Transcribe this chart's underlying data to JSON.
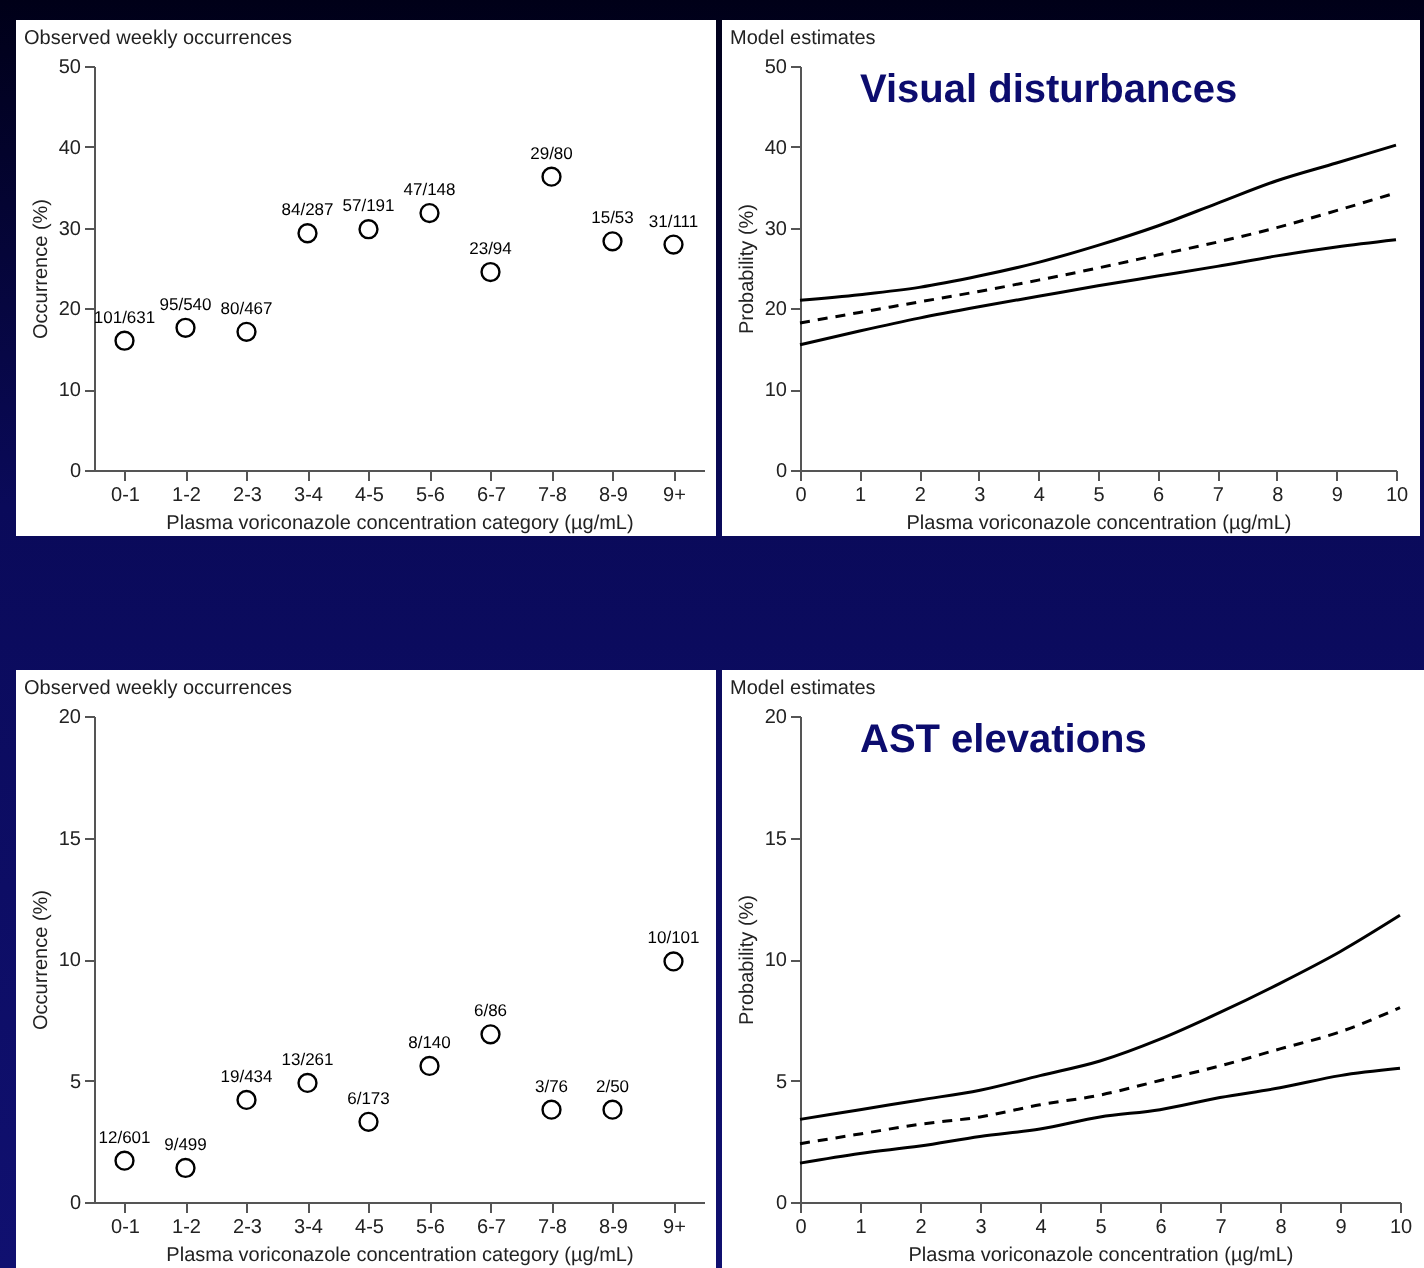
{
  "chart_data": [
    {
      "type": "scatter",
      "title": "Observed weekly occurrences",
      "xlabel": "Plasma voriconazole concentration category (µg/mL)",
      "ylabel": "Occurrence (%)",
      "categories": [
        "0-1",
        "1-2",
        "2-3",
        "3-4",
        "4-5",
        "5-6",
        "6-7",
        "7-8",
        "8-9",
        "9+"
      ],
      "series": [
        {
          "color": "#000000",
          "values": [
            16.0,
            17.6,
            17.1,
            29.3,
            29.8,
            31.8,
            24.5,
            36.3,
            28.3,
            27.9
          ],
          "value_labels": [
            "101/631",
            "95/540",
            "80/467",
            "84/287",
            "57/191",
            "47/148",
            "23/94",
            "29/80",
            "15/53",
            "31/111"
          ]
        }
      ],
      "ylim": [
        0,
        50
      ],
      "yticks": [
        0,
        10,
        20,
        30,
        40,
        50
      ],
      "marker": "circle",
      "grid": false
    },
    {
      "type": "line",
      "title": "Model estimates",
      "annotations": [
        "Visual disturbances"
      ],
      "xlabel": "Plasma voriconazole concentration (µg/mL)",
      "ylabel": "Probability (%)",
      "x": [
        0,
        1,
        2,
        3,
        4,
        5,
        6,
        7,
        8,
        9,
        10
      ],
      "series": [
        {
          "color": "#000000",
          "line_style": "solid",
          "values": [
            21.0,
            21.7,
            22.6,
            24.0,
            25.7,
            27.8,
            30.2,
            33.0,
            35.8,
            38.0,
            40.2
          ]
        },
        {
          "color": "#000000",
          "line_style": "dashed",
          "values": [
            18.2,
            19.5,
            20.8,
            22.1,
            23.5,
            25.0,
            26.6,
            28.2,
            30.0,
            32.1,
            34.3
          ]
        },
        {
          "color": "#000000",
          "line_style": "solid",
          "values": [
            15.5,
            17.2,
            18.8,
            20.2,
            21.5,
            22.8,
            24.0,
            25.2,
            26.5,
            27.6,
            28.5
          ]
        }
      ],
      "xlim": [
        0,
        10
      ],
      "xticks": [
        0,
        1,
        2,
        3,
        4,
        5,
        6,
        7,
        8,
        9,
        10
      ],
      "ylim": [
        0,
        50
      ],
      "yticks": [
        0,
        10,
        20,
        30,
        40,
        50
      ],
      "grid": false
    },
    {
      "type": "scatter",
      "title": "Observed weekly occurrences",
      "xlabel": "Plasma voriconazole concentration category (µg/mL)",
      "ylabel": "Occurrence (%)",
      "categories": [
        "0-1",
        "1-2",
        "2-3",
        "3-4",
        "4-5",
        "5-6",
        "6-7",
        "7-8",
        "8-9",
        "9+"
      ],
      "series": [
        {
          "color": "#000000",
          "values": [
            1.7,
            1.4,
            4.2,
            4.9,
            3.3,
            5.6,
            6.9,
            3.8,
            3.8,
            9.9
          ],
          "value_labels": [
            "12/601",
            "9/499",
            "19/434",
            "13/261",
            "6/173",
            "8/140",
            "6/86",
            "3/76",
            "2/50",
            "10/101"
          ]
        }
      ],
      "ylim": [
        0,
        20
      ],
      "yticks": [
        0,
        5,
        10,
        15,
        20
      ],
      "marker": "circle",
      "grid": false
    },
    {
      "type": "line",
      "title": "Model estimates",
      "annotations": [
        "AST elevations"
      ],
      "xlabel": "Plasma voriconazole concentration (µg/mL)",
      "ylabel": "Probability (%)",
      "x": [
        0,
        1,
        2,
        3,
        4,
        5,
        6,
        7,
        8,
        9,
        10
      ],
      "series": [
        {
          "color": "#000000",
          "line_style": "solid",
          "values": [
            3.4,
            3.8,
            4.2,
            4.6,
            5.2,
            5.8,
            6.7,
            7.8,
            9.0,
            10.3,
            11.8
          ]
        },
        {
          "color": "#000000",
          "line_style": "dashed",
          "values": [
            2.4,
            2.8,
            3.2,
            3.5,
            4.0,
            4.4,
            5.0,
            5.6,
            6.3,
            7.0,
            8.0
          ]
        },
        {
          "color": "#000000",
          "line_style": "solid",
          "values": [
            1.6,
            2.0,
            2.3,
            2.7,
            3.0,
            3.5,
            3.8,
            4.3,
            4.7,
            5.2,
            5.5
          ]
        }
      ],
      "xlim": [
        0,
        10
      ],
      "xticks": [
        0,
        1,
        2,
        3,
        4,
        5,
        6,
        7,
        8,
        9,
        10
      ],
      "ylim": [
        0,
        20
      ],
      "yticks": [
        0,
        5,
        10,
        15,
        20
      ],
      "grid": false
    }
  ]
}
